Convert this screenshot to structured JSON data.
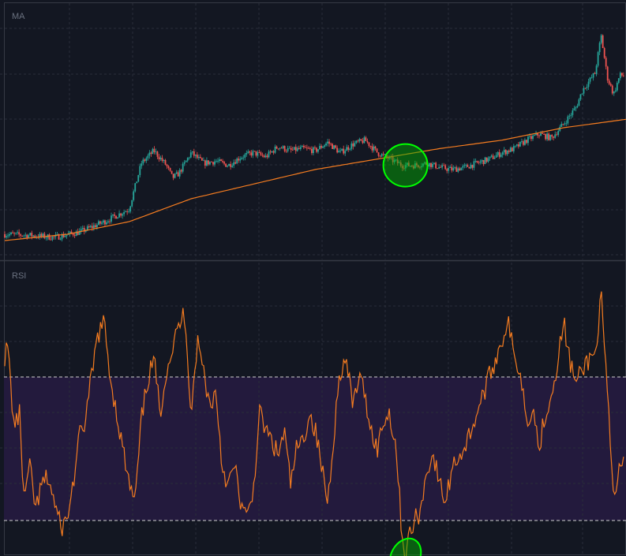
{
  "chart_data": [
    {
      "type": "candlestick",
      "label": "MA",
      "grid": true,
      "colors": {
        "up": "#26a69a",
        "down": "#ef5350",
        "ma": "#f57c20"
      },
      "close_series": [
        [
          0,
          0.03
        ],
        [
          4,
          0.025
        ],
        [
          8,
          0.015
        ],
        [
          12,
          0.04
        ],
        [
          16,
          0.09
        ],
        [
          18,
          0.12
        ],
        [
          20,
          0.15
        ],
        [
          21,
          0.26
        ],
        [
          22,
          0.37
        ],
        [
          24,
          0.43
        ],
        [
          26,
          0.36
        ],
        [
          27,
          0.3
        ],
        [
          28,
          0.32
        ],
        [
          30,
          0.42
        ],
        [
          32,
          0.37
        ],
        [
          34,
          0.38
        ],
        [
          36,
          0.36
        ],
        [
          38,
          0.4
        ],
        [
          40,
          0.42
        ],
        [
          42,
          0.4
        ],
        [
          44,
          0.45
        ],
        [
          46,
          0.43
        ],
        [
          48,
          0.44
        ],
        [
          50,
          0.43
        ],
        [
          52,
          0.47
        ],
        [
          54,
          0.42
        ],
        [
          56,
          0.46
        ],
        [
          58,
          0.48
        ],
        [
          60,
          0.42
        ],
        [
          62,
          0.39
        ],
        [
          64,
          0.36
        ],
        [
          66,
          0.36
        ],
        [
          68,
          0.37
        ],
        [
          70,
          0.35
        ],
        [
          72,
          0.34
        ],
        [
          74,
          0.35
        ],
        [
          76,
          0.37
        ],
        [
          78,
          0.39
        ],
        [
          80,
          0.42
        ],
        [
          82,
          0.44
        ],
        [
          84,
          0.48
        ],
        [
          86,
          0.51
        ],
        [
          88,
          0.49
        ],
        [
          90,
          0.56
        ],
        [
          92,
          0.64
        ],
        [
          93,
          0.72
        ],
        [
          94,
          0.76
        ],
        [
          95,
          0.8
        ],
        [
          96,
          0.98
        ],
        [
          97,
          0.78
        ],
        [
          98,
          0.7
        ],
        [
          99,
          0.79
        ]
      ],
      "ma_series": [
        [
          0,
          0.0
        ],
        [
          10,
          0.03
        ],
        [
          20,
          0.09
        ],
        [
          30,
          0.2
        ],
        [
          40,
          0.27
        ],
        [
          50,
          0.34
        ],
        [
          60,
          0.39
        ],
        [
          70,
          0.44
        ],
        [
          80,
          0.48
        ],
        [
          90,
          0.54
        ],
        [
          100,
          0.58
        ]
      ],
      "annotation": {
        "shape": "ellipse",
        "x": 64.5,
        "y": 0.36,
        "color": "#00ff00"
      }
    },
    {
      "type": "line",
      "label": "RSI",
      "grid": true,
      "colors": {
        "line": "#f57c20",
        "band": "#231a3d",
        "band_border": "#d0d0d0"
      },
      "ylim": [
        0,
        100
      ],
      "bands": [
        30,
        70
      ],
      "series": [
        [
          0,
          76
        ],
        [
          0.5,
          78
        ],
        [
          1.5,
          56
        ],
        [
          2.5,
          60
        ],
        [
          3,
          35
        ],
        [
          4,
          45
        ],
        [
          5,
          33
        ],
        [
          6,
          40
        ],
        [
          7,
          42
        ],
        [
          8,
          35
        ],
        [
          9,
          28
        ],
        [
          10,
          30
        ],
        [
          11,
          40
        ],
        [
          12,
          53
        ],
        [
          13,
          58
        ],
        [
          14,
          70
        ],
        [
          15,
          82
        ],
        [
          16,
          85
        ],
        [
          17,
          70
        ],
        [
          18,
          60
        ],
        [
          19,
          50
        ],
        [
          20,
          40
        ],
        [
          21,
          35
        ],
        [
          22,
          58
        ],
        [
          23,
          69
        ],
        [
          24,
          75
        ],
        [
          25,
          60
        ],
        [
          26,
          72
        ],
        [
          27,
          78
        ],
        [
          28,
          84
        ],
        [
          29,
          88
        ],
        [
          30,
          60
        ],
        [
          31,
          80
        ],
        [
          32,
          72
        ],
        [
          33,
          62
        ],
        [
          34,
          66
        ],
        [
          35,
          45
        ],
        [
          36,
          40
        ],
        [
          37,
          45
        ],
        [
          38,
          35
        ],
        [
          39,
          30
        ],
        [
          40,
          38
        ],
        [
          41,
          60
        ],
        [
          42,
          55
        ],
        [
          43,
          52
        ],
        [
          44,
          48
        ],
        [
          45,
          55
        ],
        [
          46,
          40
        ],
        [
          47,
          50
        ],
        [
          48,
          52
        ],
        [
          49,
          60
        ],
        [
          50,
          55
        ],
        [
          51,
          45
        ],
        [
          52,
          35
        ],
        [
          53,
          55
        ],
        [
          54,
          72
        ],
        [
          55,
          74
        ],
        [
          56,
          62
        ],
        [
          57,
          70
        ],
        [
          58,
          65
        ],
        [
          59,
          55
        ],
        [
          60,
          50
        ],
        [
          61,
          58
        ],
        [
          62,
          60
        ],
        [
          63,
          50
        ],
        [
          64,
          25
        ],
        [
          64.5,
          20
        ],
        [
          65,
          25
        ],
        [
          66,
          30
        ],
        [
          67,
          33
        ],
        [
          68,
          45
        ],
        [
          69,
          48
        ],
        [
          70,
          40
        ],
        [
          71,
          35
        ],
        [
          72,
          45
        ],
        [
          73,
          48
        ],
        [
          74,
          50
        ],
        [
          75,
          55
        ],
        [
          76,
          60
        ],
        [
          77,
          65
        ],
        [
          78,
          70
        ],
        [
          79,
          75
        ],
        [
          80,
          80
        ],
        [
          81,
          86
        ],
        [
          82,
          75
        ],
        [
          83,
          72
        ],
        [
          84,
          58
        ],
        [
          85,
          62
        ],
        [
          86,
          50
        ],
        [
          87,
          60
        ],
        [
          88,
          65
        ],
        [
          89,
          75
        ],
        [
          90,
          85
        ],
        [
          91,
          74
        ],
        [
          92,
          68
        ],
        [
          93,
          72
        ],
        [
          94,
          75
        ],
        [
          95,
          76
        ],
        [
          96,
          92
        ],
        [
          97,
          65
        ],
        [
          98,
          35
        ],
        [
          99,
          45
        ]
      ],
      "annotation": {
        "shape": "ellipse",
        "x": 64.5,
        "y": 20,
        "color": "#00ff00"
      }
    }
  ]
}
